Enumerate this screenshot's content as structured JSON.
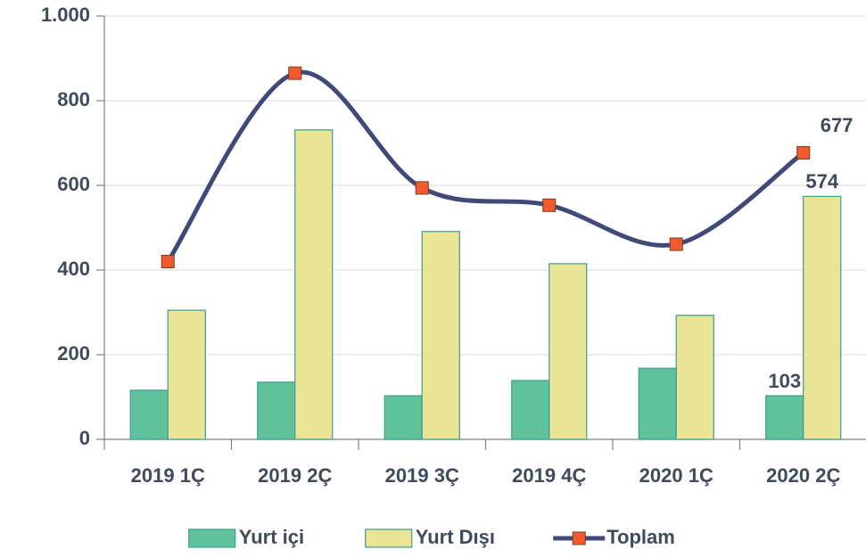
{
  "chart_data": {
    "type": "bar",
    "categories": [
      "2019 1Ç",
      "2019 2Ç",
      "2019 3Ç",
      "2019 4Ç",
      "2020 1Ç",
      "2020 2Ç"
    ],
    "series": [
      {
        "name": "Yurt içi",
        "type": "bar",
        "color": "#5fc29d",
        "values": [
          116,
          135,
          103,
          139,
          168,
          103
        ],
        "value_labels": [
          null,
          null,
          null,
          null,
          null,
          "103"
        ]
      },
      {
        "name": "Yurt Dışı",
        "type": "bar",
        "color": "#e9e594",
        "values": [
          305,
          731,
          491,
          415,
          293,
          574
        ],
        "value_labels": [
          null,
          null,
          null,
          null,
          null,
          "574"
        ]
      },
      {
        "name": "Toplam",
        "type": "line",
        "color": "#404a78",
        "marker_color": "#f15a2b",
        "values": [
          420,
          865,
          594,
          553,
          461,
          677
        ],
        "value_labels": [
          null,
          null,
          null,
          null,
          null,
          "677"
        ]
      }
    ],
    "ylim": [
      0,
      1000
    ],
    "yticks": [
      0,
      200,
      400,
      600,
      800,
      {
        "value": 1000,
        "label": "1.000"
      }
    ],
    "grid": true,
    "legend": "bottom"
  }
}
